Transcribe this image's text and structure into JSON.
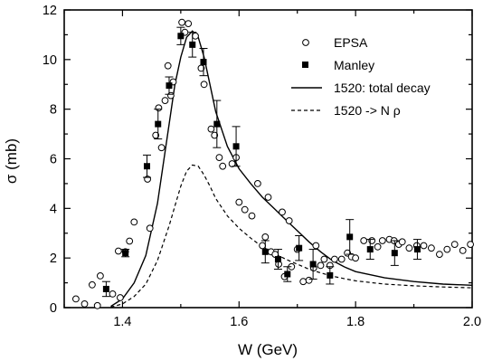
{
  "chart_data": {
    "type": "scatter",
    "xlabel": "W (GeV)",
    "ylabel": "σ (mb)",
    "xlim": [
      1.3,
      2.0
    ],
    "ylim": [
      0,
      12
    ],
    "x_ticks": [
      1.4,
      1.6,
      1.8,
      2.0
    ],
    "x_tick_labels": [
      "1.4",
      "1.6",
      "1.8",
      "2.0"
    ],
    "y_ticks": [
      0,
      2,
      4,
      6,
      8,
      10,
      12
    ],
    "y_tick_labels": [
      "0",
      "2",
      "4",
      "6",
      "8",
      "10",
      "12"
    ],
    "legend_position": "top-right",
    "series": [
      {
        "name": "EPSA",
        "kind": "scatter",
        "marker": "open-circle",
        "points": [
          [
            1.32,
            0.35
          ],
          [
            1.335,
            0.15
          ],
          [
            1.348,
            0.92
          ],
          [
            1.357,
            0.08
          ],
          [
            1.362,
            1.28
          ],
          [
            1.383,
            0.55
          ],
          [
            1.393,
            2.28
          ],
          [
            1.396,
            0.4
          ],
          [
            1.405,
            2.25
          ],
          [
            1.412,
            2.68
          ],
          [
            1.42,
            3.45
          ],
          [
            1.443,
            5.18
          ],
          [
            1.447,
            3.2
          ],
          [
            1.457,
            6.95
          ],
          [
            1.462,
            8.05
          ],
          [
            1.467,
            6.45
          ],
          [
            1.473,
            8.35
          ],
          [
            1.478,
            9.75
          ],
          [
            1.483,
            8.55
          ],
          [
            1.487,
            9.1
          ],
          [
            1.502,
            11.5
          ],
          [
            1.507,
            11.1
          ],
          [
            1.513,
            11.45
          ],
          [
            1.525,
            10.95
          ],
          [
            1.535,
            9.65
          ],
          [
            1.54,
            9.0
          ],
          [
            1.552,
            7.2
          ],
          [
            1.558,
            6.95
          ],
          [
            1.566,
            6.05
          ],
          [
            1.572,
            5.7
          ],
          [
            1.588,
            5.8
          ],
          [
            1.595,
            6.05
          ],
          [
            1.6,
            4.25
          ],
          [
            1.61,
            3.95
          ],
          [
            1.622,
            3.7
          ],
          [
            1.632,
            5.0
          ],
          [
            1.64,
            2.5
          ],
          [
            1.645,
            2.85
          ],
          [
            1.65,
            4.45
          ],
          [
            1.655,
            2.25
          ],
          [
            1.662,
            2.15
          ],
          [
            1.668,
            1.75
          ],
          [
            1.674,
            3.85
          ],
          [
            1.678,
            1.25
          ],
          [
            1.686,
            3.5
          ],
          [
            1.69,
            1.65
          ],
          [
            1.7,
            2.35
          ],
          [
            1.71,
            1.05
          ],
          [
            1.72,
            1.1
          ],
          [
            1.728,
            1.6
          ],
          [
            1.732,
            2.5
          ],
          [
            1.74,
            1.7
          ],
          [
            1.746,
            1.95
          ],
          [
            1.756,
            1.7
          ],
          [
            1.764,
            1.95
          ],
          [
            1.776,
            1.95
          ],
          [
            1.786,
            2.2
          ],
          [
            1.793,
            2.05
          ],
          [
            1.8,
            2.0
          ],
          [
            1.814,
            2.7
          ],
          [
            1.828,
            2.7
          ],
          [
            1.838,
            2.45
          ],
          [
            1.846,
            2.7
          ],
          [
            1.858,
            2.75
          ],
          [
            1.866,
            2.7
          ],
          [
            1.874,
            2.55
          ],
          [
            1.88,
            2.65
          ],
          [
            1.892,
            2.4
          ],
          [
            1.905,
            2.5
          ],
          [
            1.917,
            2.5
          ],
          [
            1.93,
            2.4
          ],
          [
            1.944,
            2.15
          ],
          [
            1.957,
            2.35
          ],
          [
            1.97,
            2.55
          ],
          [
            1.984,
            2.3
          ],
          [
            1.997,
            2.55
          ]
        ]
      },
      {
        "name": "Manley",
        "kind": "errorbar",
        "marker": "filled-square",
        "points": [
          {
            "x": 1.372,
            "y": 0.75,
            "err": 0.3
          },
          {
            "x": 1.405,
            "y": 2.2,
            "err": 0.15
          },
          {
            "x": 1.442,
            "y": 5.7,
            "err": 0.45
          },
          {
            "x": 1.461,
            "y": 7.4,
            "err": 0.6
          },
          {
            "x": 1.48,
            "y": 8.95,
            "err": 0.35
          },
          {
            "x": 1.5,
            "y": 10.95,
            "err": 0.35
          },
          {
            "x": 1.52,
            "y": 10.6,
            "err": 0.5
          },
          {
            "x": 1.539,
            "y": 9.9,
            "err": 0.55
          },
          {
            "x": 1.562,
            "y": 7.4,
            "err": 0.95
          },
          {
            "x": 1.595,
            "y": 6.5,
            "err": 0.8
          },
          {
            "x": 1.645,
            "y": 2.25,
            "err": 0.45
          },
          {
            "x": 1.667,
            "y": 1.95,
            "err": 0.4
          },
          {
            "x": 1.683,
            "y": 1.35,
            "err": 0.3
          },
          {
            "x": 1.703,
            "y": 2.4,
            "err": 0.5
          },
          {
            "x": 1.727,
            "y": 1.75,
            "err": 0.6
          },
          {
            "x": 1.756,
            "y": 1.3,
            "err": 0.35
          },
          {
            "x": 1.79,
            "y": 2.85,
            "err": 0.7
          },
          {
            "x": 1.825,
            "y": 2.35,
            "err": 0.4
          },
          {
            "x": 1.867,
            "y": 2.2,
            "err": 0.5
          },
          {
            "x": 1.906,
            "y": 2.35,
            "err": 0.4
          }
        ]
      },
      {
        "name": "1520: total decay",
        "kind": "line",
        "style": "solid",
        "points": [
          [
            1.38,
            0.05
          ],
          [
            1.4,
            0.35
          ],
          [
            1.42,
            1.0
          ],
          [
            1.44,
            2.1
          ],
          [
            1.46,
            4.2
          ],
          [
            1.48,
            7.4
          ],
          [
            1.49,
            9.0
          ],
          [
            1.5,
            10.1
          ],
          [
            1.51,
            10.9
          ],
          [
            1.52,
            11.15
          ],
          [
            1.53,
            10.9
          ],
          [
            1.54,
            10.1
          ],
          [
            1.55,
            9.0
          ],
          [
            1.56,
            7.9
          ],
          [
            1.58,
            6.5
          ],
          [
            1.6,
            5.6
          ],
          [
            1.62,
            5.0
          ],
          [
            1.64,
            4.45
          ],
          [
            1.66,
            4.0
          ],
          [
            1.68,
            3.55
          ],
          [
            1.7,
            3.1
          ],
          [
            1.72,
            2.65
          ],
          [
            1.74,
            2.25
          ],
          [
            1.76,
            1.9
          ],
          [
            1.78,
            1.65
          ],
          [
            1.8,
            1.45
          ],
          [
            1.85,
            1.2
          ],
          [
            1.9,
            1.05
          ],
          [
            1.95,
            0.95
          ],
          [
            2.0,
            0.9
          ]
        ]
      },
      {
        "name": "1520 -> N ρ",
        "kind": "line",
        "style": "dashed",
        "points": [
          [
            1.38,
            0.02
          ],
          [
            1.4,
            0.15
          ],
          [
            1.42,
            0.45
          ],
          [
            1.44,
            0.95
          ],
          [
            1.46,
            1.9
          ],
          [
            1.48,
            3.3
          ],
          [
            1.49,
            4.1
          ],
          [
            1.5,
            4.9
          ],
          [
            1.51,
            5.5
          ],
          [
            1.52,
            5.75
          ],
          [
            1.53,
            5.7
          ],
          [
            1.54,
            5.35
          ],
          [
            1.55,
            4.9
          ],
          [
            1.56,
            4.4
          ],
          [
            1.58,
            3.7
          ],
          [
            1.6,
            3.2
          ],
          [
            1.62,
            2.8
          ],
          [
            1.64,
            2.45
          ],
          [
            1.66,
            2.2
          ],
          [
            1.68,
            1.95
          ],
          [
            1.7,
            1.75
          ],
          [
            1.72,
            1.55
          ],
          [
            1.74,
            1.4
          ],
          [
            1.76,
            1.27
          ],
          [
            1.78,
            1.17
          ],
          [
            1.8,
            1.08
          ],
          [
            1.85,
            0.95
          ],
          [
            1.9,
            0.88
          ],
          [
            1.95,
            0.83
          ],
          [
            2.0,
            0.8
          ]
        ]
      }
    ]
  }
}
